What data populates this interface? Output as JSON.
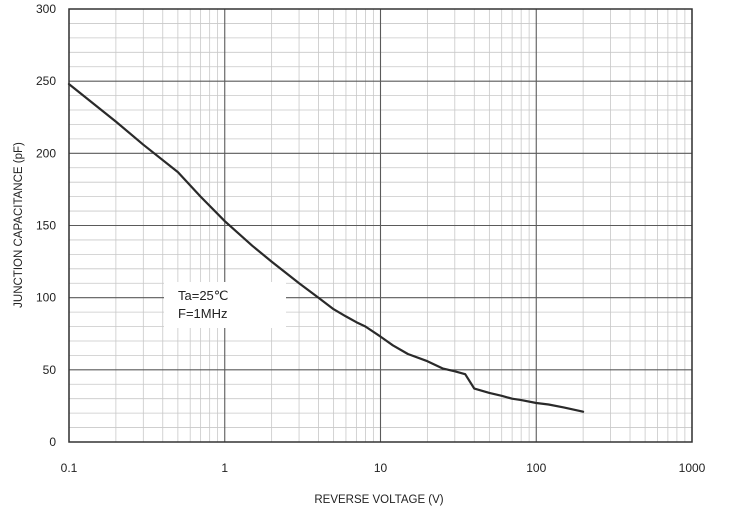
{
  "chart_data": {
    "type": "line",
    "title": "",
    "xlabel": "REVERSE VOLTAGE (V)",
    "ylabel": "JUNCTION CAPACITANCE (pF)",
    "x_scale": "log",
    "xlim": [
      0.1,
      1000
    ],
    "ylim": [
      0,
      300
    ],
    "x_ticks": [
      0.1,
      1,
      10,
      100,
      1000
    ],
    "x_tick_labels": [
      "0.1",
      "1",
      "10",
      "100",
      "1000"
    ],
    "y_ticks": [
      0,
      50,
      100,
      150,
      200,
      250,
      300
    ],
    "y_tick_labels": [
      "0",
      "50",
      "100",
      "150",
      "200",
      "250",
      "300"
    ],
    "grid": true,
    "annotations": [
      "Ta=25℃",
      "F=1MHz"
    ],
    "series": [
      {
        "x": [
          0.1,
          0.2,
          0.3,
          0.5,
          0.7,
          1,
          1.5,
          2,
          3,
          4,
          5,
          6,
          7,
          8,
          10,
          12,
          15,
          20,
          25,
          30,
          35,
          40,
          50,
          60,
          70,
          80,
          100,
          120,
          150,
          200
        ],
        "y": [
          248,
          222,
          206,
          187,
          170,
          153,
          136,
          125,
          110,
          100,
          92,
          87,
          83,
          80,
          73,
          67,
          61,
          56,
          51,
          49,
          47,
          37,
          34,
          32,
          30,
          29,
          27,
          26,
          24,
          21
        ],
        "color": "#2a2a2a"
      }
    ]
  }
}
